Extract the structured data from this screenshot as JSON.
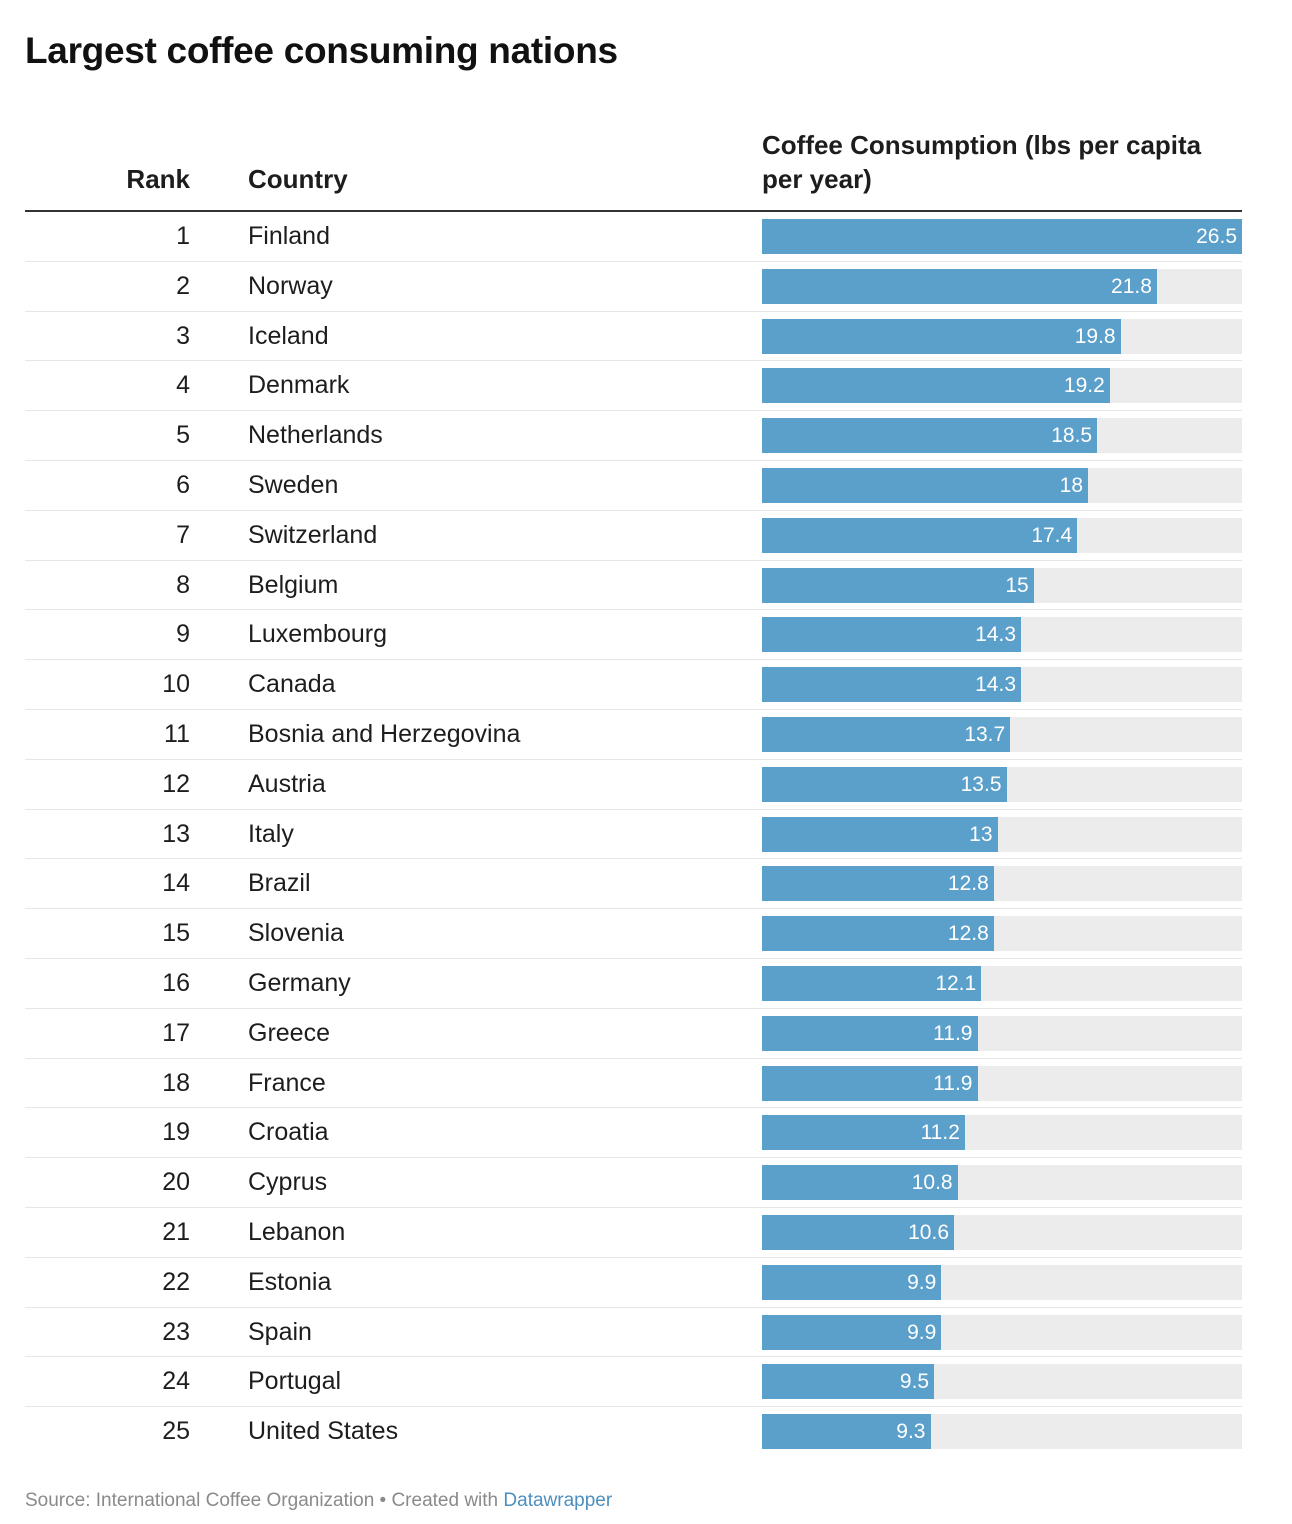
{
  "title": "Largest coffee consuming nations",
  "columns": {
    "rank": "Rank",
    "country": "Country",
    "value": "Coffee Consumption (lbs per capita per year)"
  },
  "colors": {
    "bar": "#5b9fcb",
    "track": "#ececec"
  },
  "footer": {
    "source": "Source: International Coffee Organization • Created with ",
    "tool": "Datawrapper"
  },
  "chart_data": {
    "type": "table",
    "title": "Largest coffee consuming nations",
    "max_value": 26.5,
    "rows": [
      {
        "rank": "1",
        "country": "Finland",
        "value": 26.5
      },
      {
        "rank": "2",
        "country": "Norway",
        "value": 21.8
      },
      {
        "rank": "3",
        "country": "Iceland",
        "value": 19.8
      },
      {
        "rank": "4",
        "country": "Denmark",
        "value": 19.2
      },
      {
        "rank": "5",
        "country": "Netherlands",
        "value": 18.5
      },
      {
        "rank": "6",
        "country": "Sweden",
        "value": 18
      },
      {
        "rank": "7",
        "country": "Switzerland",
        "value": 17.4
      },
      {
        "rank": "8",
        "country": "Belgium",
        "value": 15
      },
      {
        "rank": "9",
        "country": "Luxembourg",
        "value": 14.3
      },
      {
        "rank": "10",
        "country": "Canada",
        "value": 14.3
      },
      {
        "rank": "11",
        "country": "Bosnia and Herzegovina",
        "value": 13.7
      },
      {
        "rank": "12",
        "country": "Austria",
        "value": 13.5
      },
      {
        "rank": "13",
        "country": "Italy",
        "value": 13
      },
      {
        "rank": "14",
        "country": "Brazil",
        "value": 12.8
      },
      {
        "rank": "15",
        "country": "Slovenia",
        "value": 12.8
      },
      {
        "rank": "16",
        "country": "Germany",
        "value": 12.1
      },
      {
        "rank": "17",
        "country": "Greece",
        "value": 11.9
      },
      {
        "rank": "18",
        "country": "France",
        "value": 11.9
      },
      {
        "rank": "19",
        "country": "Croatia",
        "value": 11.2
      },
      {
        "rank": "20",
        "country": "Cyprus",
        "value": 10.8
      },
      {
        "rank": "21",
        "country": "Lebanon",
        "value": 10.6
      },
      {
        "rank": "22",
        "country": "Estonia",
        "value": 9.9
      },
      {
        "rank": "23",
        "country": "Spain",
        "value": 9.9
      },
      {
        "rank": "24",
        "country": "Portugal",
        "value": 9.5
      },
      {
        "rank": "25",
        "country": "United States",
        "value": 9.3
      }
    ]
  }
}
